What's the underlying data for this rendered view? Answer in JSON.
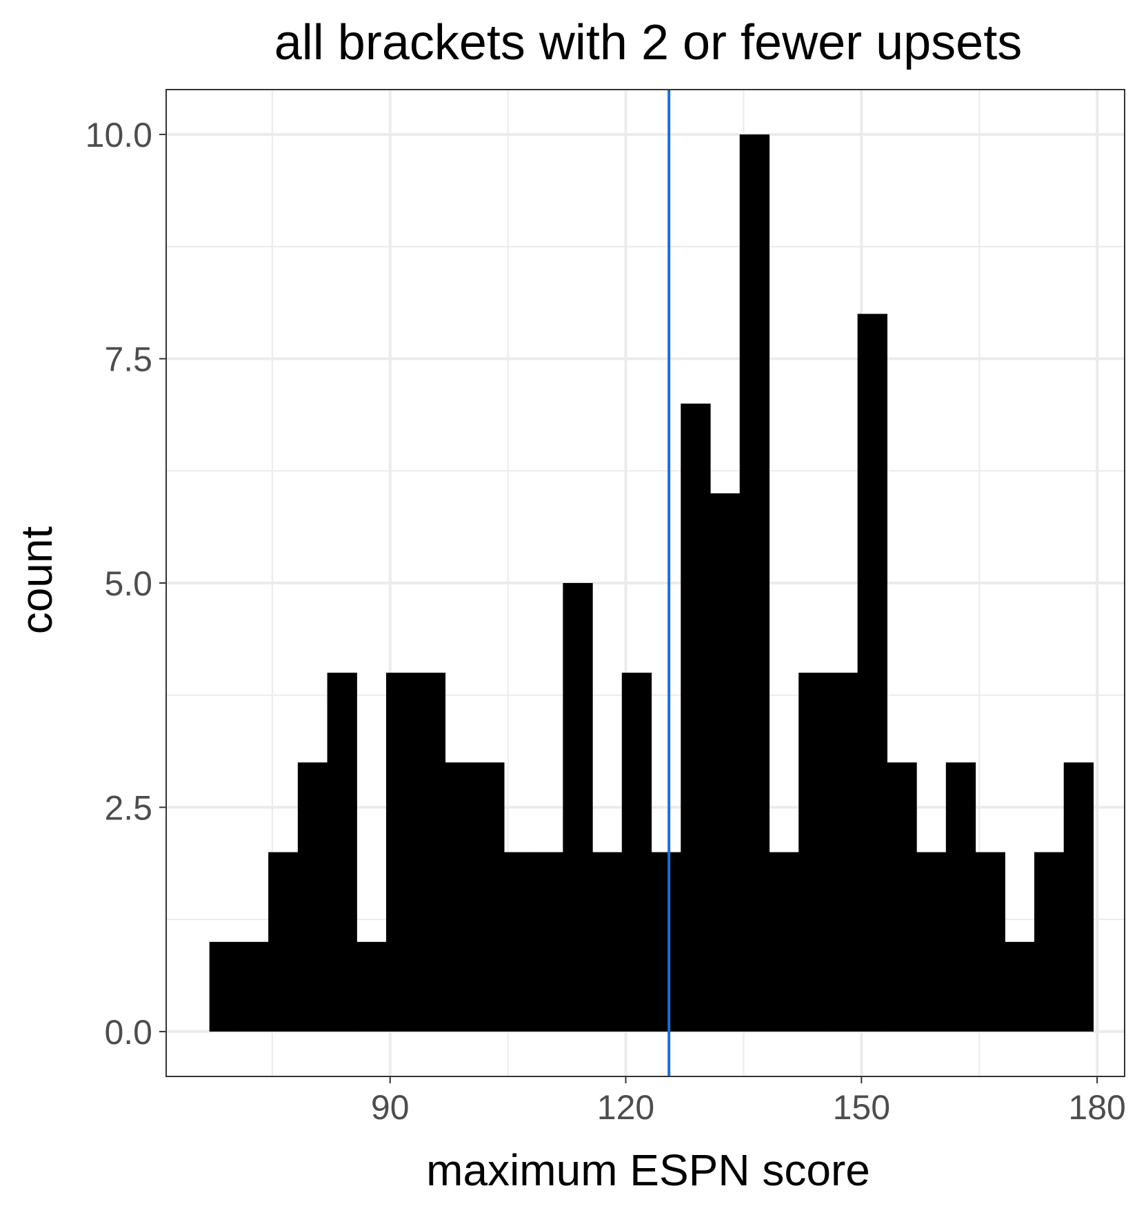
{
  "chart_data": {
    "type": "bar",
    "title": "all brackets with 2 or fewer upsets",
    "xlabel": "maximum ESPN score",
    "ylabel": "count",
    "xlim": [
      61.5,
      183.5
    ],
    "ylim": [
      -0.5,
      10.5
    ],
    "x_ticks": [
      90,
      120,
      150,
      180
    ],
    "x_tick_labels": [
      "90",
      "120",
      "150",
      "180"
    ],
    "y_ticks": [
      0,
      2.5,
      5,
      7.5,
      10
    ],
    "y_tick_labels": [
      "0.0",
      "2.5",
      "5.0",
      "7.5",
      "10.0"
    ],
    "x_minor_ticks": [
      75,
      105,
      135,
      165
    ],
    "y_minor_ticks": [
      1.25,
      3.75,
      6.25,
      8.75
    ],
    "grid": true,
    "bin_width": 3.75,
    "bin_start": 67.0,
    "counts": [
      1,
      1,
      2,
      3,
      4,
      1,
      4,
      4,
      3,
      3,
      2,
      2,
      5,
      2,
      4,
      2,
      7,
      6,
      10,
      2,
      4,
      4,
      8,
      3,
      2,
      3,
      2,
      1,
      2,
      3
    ],
    "vline": {
      "x": 125.5
    },
    "colors": {
      "bars": "#000000",
      "vline": "#1a6ed8",
      "grid": "#ebebeb",
      "panel_border": "#333333",
      "tick_label": "#4d4d4d",
      "title": "#000000"
    }
  }
}
